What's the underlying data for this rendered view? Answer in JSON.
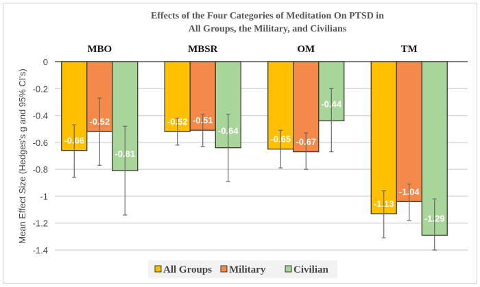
{
  "chart_data": {
    "type": "bar",
    "title_lines": [
      "Effects of the Four Categories of Meditation On PTSD in",
      "All Groups, the Military, and Civilians"
    ],
    "ylabel": "Mean Effect Size (Hedges's g and 95% CI's)",
    "categories": [
      "MBO",
      "MBSR",
      "OM",
      "TM"
    ],
    "ylim": [
      -1.4,
      0
    ],
    "yticks": [
      0,
      -0.2,
      -0.4,
      -0.6,
      -0.8,
      -1,
      -1.2,
      -1.4
    ],
    "ytick_labels": [
      "0",
      "-0.2",
      "-0.4",
      "-0.6",
      "-0.8",
      "-1",
      "-1.2",
      "-1.4"
    ],
    "grid": true,
    "legend_position": "bottom",
    "series": [
      {
        "name": "All Groups",
        "color": "#FFC000",
        "values": [
          -0.66,
          -0.52,
          -0.65,
          -1.13
        ],
        "labels": [
          "-0.66",
          "-0.52",
          "-0.65",
          "-1.13"
        ],
        "ci": [
          [
            -0.47,
            -0.86
          ],
          [
            -0.42,
            -0.62
          ],
          [
            -0.51,
            -0.79
          ],
          [
            -0.96,
            -1.31
          ]
        ]
      },
      {
        "name": "Military",
        "color": "#F4894A",
        "values": [
          -0.52,
          -0.51,
          -0.67,
          -1.04
        ],
        "labels": [
          "-0.52",
          "-0.51",
          "-0.67",
          "-1.04"
        ],
        "ci": [
          [
            -0.27,
            -0.77
          ],
          [
            -0.39,
            -0.63
          ],
          [
            -0.53,
            -0.8
          ],
          [
            -0.91,
            -1.18
          ]
        ]
      },
      {
        "name": "Civilian",
        "color": "#A8D59A",
        "values": [
          -0.81,
          -0.64,
          -0.44,
          -1.29
        ],
        "labels": [
          "-0.81",
          "-0.64",
          "-0.44",
          "-1.29"
        ],
        "ci": [
          [
            -0.48,
            -1.14
          ],
          [
            -0.39,
            -0.89
          ],
          [
            -0.2,
            -0.67
          ],
          [
            -1.02,
            -1.4
          ]
        ]
      }
    ]
  }
}
